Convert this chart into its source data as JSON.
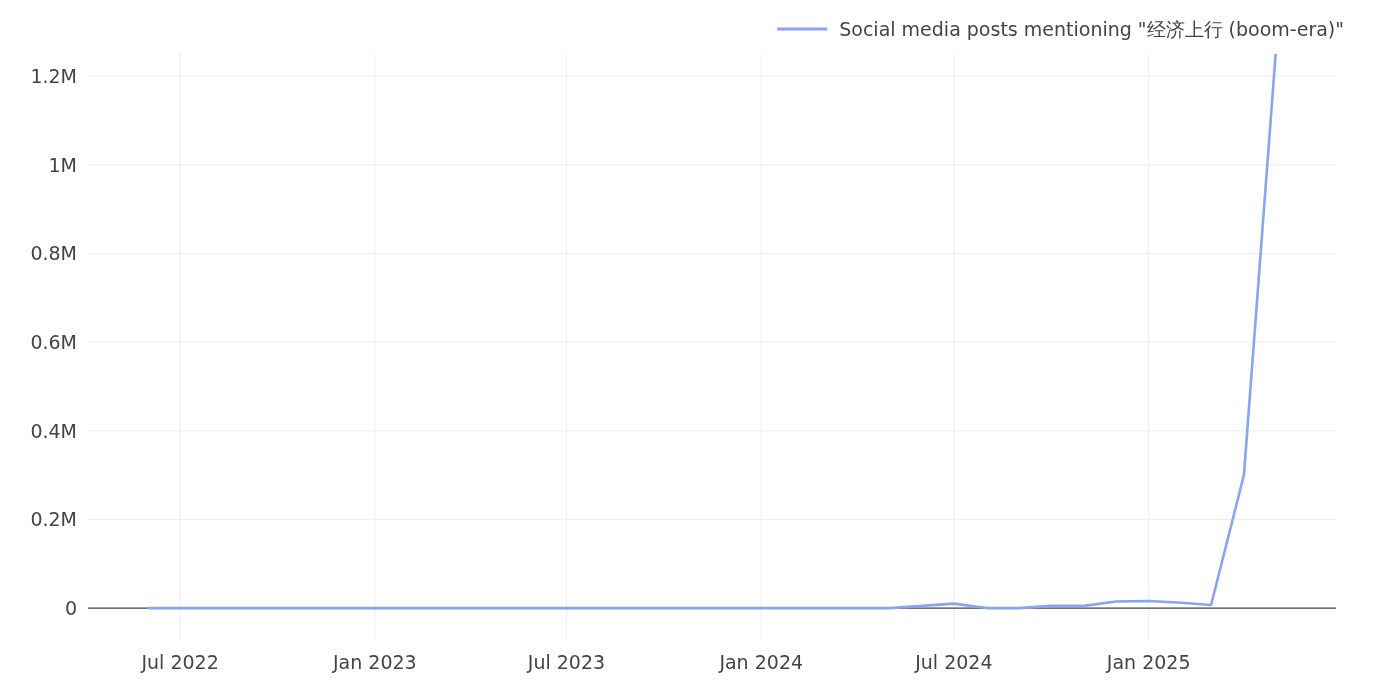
{
  "chart_data": {
    "type": "line",
    "x": [
      "2022-06-01",
      "2022-07-01",
      "2022-08-01",
      "2022-09-01",
      "2022-10-01",
      "2022-11-01",
      "2022-12-01",
      "2023-01-01",
      "2023-02-01",
      "2023-03-01",
      "2023-04-01",
      "2023-05-01",
      "2023-06-01",
      "2023-07-01",
      "2023-08-01",
      "2023-09-01",
      "2023-10-01",
      "2023-11-01",
      "2023-12-01",
      "2024-01-01",
      "2024-02-01",
      "2024-03-01",
      "2024-04-01",
      "2024-05-01",
      "2024-06-01",
      "2024-07-01",
      "2024-08-01",
      "2024-09-01",
      "2024-10-01",
      "2024-11-01",
      "2024-12-01",
      "2025-01-01",
      "2025-02-01",
      "2025-03-01",
      "2025-04-01",
      "2025-05-01"
    ],
    "series": [
      {
        "name": "Social media posts mentioning \"经济上行 (boom-era)\"",
        "color": "#88a4f2",
        "values": [
          0,
          0,
          0,
          0,
          0,
          0,
          0,
          0,
          0,
          0,
          0,
          0,
          0,
          0,
          0,
          0,
          0,
          0,
          0,
          0,
          0,
          0,
          0,
          0,
          5000,
          10000,
          0,
          0,
          5000,
          5000,
          15000,
          16000,
          12000,
          7000,
          300000,
          1250000
        ]
      }
    ],
    "xlim": [
      "2022-04-05",
      "2025-06-27"
    ],
    "xticks": [
      {
        "value": "2022-07-01",
        "label": "Jul 2022"
      },
      {
        "value": "2023-01-01",
        "label": "Jan 2023"
      },
      {
        "value": "2023-07-01",
        "label": "Jul 2023"
      },
      {
        "value": "2024-01-01",
        "label": "Jan 2024"
      },
      {
        "value": "2024-07-01",
        "label": "Jul 2024"
      },
      {
        "value": "2025-01-01",
        "label": "Jan 2025"
      }
    ],
    "ylim": [
      -72000,
      1250000
    ],
    "yticks": [
      0,
      {
        "value": 200000,
        "label": "0.2M"
      },
      {
        "value": 400000,
        "label": "0.4M"
      },
      {
        "value": 600000,
        "label": "0.6M"
      },
      {
        "value": 800000,
        "label": "0.8M"
      },
      {
        "value": 1000000,
        "label": "1M"
      },
      {
        "value": 1200000,
        "label": "1.2M"
      }
    ],
    "grid": true,
    "legend": "top right"
  }
}
